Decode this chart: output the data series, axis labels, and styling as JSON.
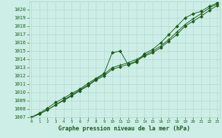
{
  "title": "Graphe pression niveau de la mer (hPa)",
  "xlabel_hours": [
    0,
    1,
    2,
    3,
    4,
    5,
    6,
    7,
    8,
    9,
    10,
    11,
    12,
    13,
    14,
    15,
    16,
    17,
    18,
    19,
    20,
    21,
    22,
    23
  ],
  "ylim": [
    1007,
    1021
  ],
  "yticks": [
    1007,
    1008,
    1009,
    1010,
    1011,
    1012,
    1013,
    1014,
    1015,
    1016,
    1017,
    1018,
    1019,
    1020
  ],
  "line1": [
    1007.0,
    1007.5,
    1008.1,
    1008.8,
    1009.3,
    1009.9,
    1010.4,
    1011.1,
    1011.7,
    1012.3,
    1014.8,
    1015.0,
    1013.3,
    1013.7,
    1014.7,
    1015.2,
    1016.0,
    1017.0,
    1018.0,
    1019.0,
    1019.5,
    1019.8,
    1020.4,
    1020.8
  ],
  "line2": [
    1007.0,
    1007.4,
    1007.9,
    1008.5,
    1009.1,
    1009.7,
    1010.3,
    1010.9,
    1011.6,
    1012.2,
    1013.0,
    1013.3,
    1013.6,
    1014.0,
    1014.5,
    1015.0,
    1015.6,
    1016.4,
    1017.3,
    1018.2,
    1018.9,
    1019.5,
    1020.2,
    1020.7
  ],
  "line3": [
    1007.0,
    1007.4,
    1007.9,
    1008.5,
    1009.0,
    1009.6,
    1010.2,
    1010.8,
    1011.5,
    1012.0,
    1012.8,
    1013.1,
    1013.4,
    1013.8,
    1014.4,
    1014.8,
    1015.4,
    1016.2,
    1017.0,
    1018.0,
    1018.6,
    1019.2,
    1019.9,
    1020.5
  ],
  "line_color": "#1a5c1a",
  "marker_color": "#1a5c1a",
  "bg_color": "#cceee6",
  "grid_color": "#aad4ca",
  "fig_bg": "#cceee6",
  "title_color": "#1a5c1a",
  "tick_color": "#1a5c1a"
}
